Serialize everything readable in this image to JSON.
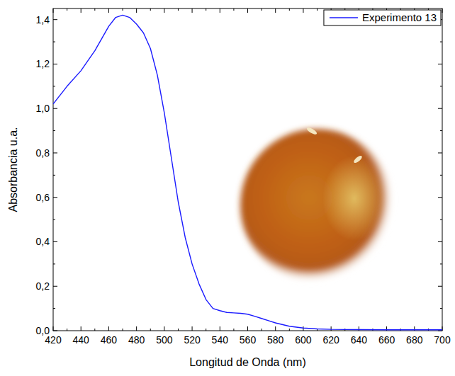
{
  "chart_data": {
    "type": "line",
    "x_label": "Longitud de Onda (nm)",
    "y_label": "Absorbancia u.a.",
    "legend": "top-right",
    "xlim": [
      420,
      700
    ],
    "xticks": [
      420,
      440,
      460,
      480,
      500,
      520,
      540,
      560,
      580,
      600,
      620,
      640,
      660,
      680,
      700
    ],
    "ylim": [
      0,
      1.45
    ],
    "yticks": [
      {
        "value": 0,
        "label": "0,0"
      },
      {
        "value": 0.2,
        "label": "0,2"
      },
      {
        "value": 0.4,
        "label": "0,4"
      },
      {
        "value": 0.6,
        "label": "0,6"
      },
      {
        "value": 0.8,
        "label": "0,8"
      },
      {
        "value": 1.0,
        "label": "1,0"
      },
      {
        "value": 1.2,
        "label": "1,2"
      },
      {
        "value": 1.4,
        "label": "1,4"
      }
    ],
    "x": [
      420,
      430,
      440,
      450,
      460,
      465,
      470,
      475,
      480,
      485,
      490,
      495,
      500,
      505,
      510,
      515,
      520,
      525,
      530,
      535,
      540,
      545,
      550,
      555,
      560,
      565,
      570,
      575,
      580,
      590,
      600,
      610,
      620,
      640,
      660,
      680,
      700
    ],
    "series": [
      {
        "name": "Experimento 13",
        "color": "#1a1aff",
        "values": [
          1.02,
          1.1,
          1.17,
          1.26,
          1.37,
          1.41,
          1.42,
          1.41,
          1.38,
          1.34,
          1.27,
          1.15,
          0.98,
          0.78,
          0.58,
          0.42,
          0.3,
          0.21,
          0.14,
          0.1,
          0.09,
          0.082,
          0.08,
          0.078,
          0.074,
          0.065,
          0.055,
          0.045,
          0.035,
          0.02,
          0.012,
          0.008,
          0.006,
          0.005,
          0.004,
          0.004,
          0.004
        ]
      }
    ]
  }
}
